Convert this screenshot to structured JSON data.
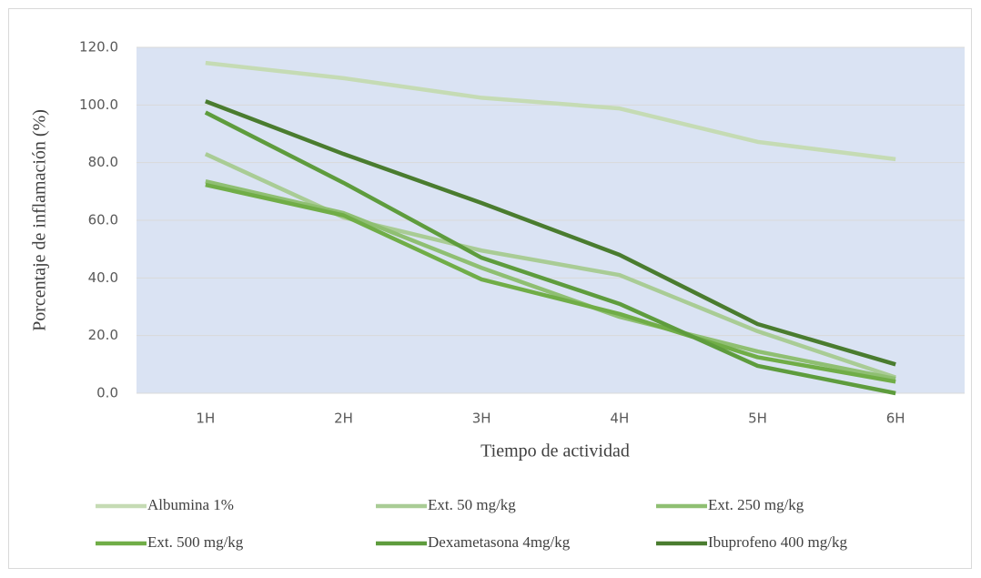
{
  "chart_data": {
    "type": "line",
    "ylabel": "Porcentaje de inflamación (%)",
    "xlabel": "Tiempo de actividad",
    "categories": [
      "1H",
      "2H",
      "3H",
      "4H",
      "5H",
      "6H"
    ],
    "series": [
      {
        "name": "Albumina 1%",
        "color": "#c5dbb4",
        "values": [
          114.6,
          109.3,
          102.5,
          98.8,
          87.2,
          81.2
        ]
      },
      {
        "name": "Ext. 50 mg/kg",
        "color": "#a9cc95",
        "values": [
          83,
          61,
          49.5,
          41,
          21.5,
          5.5
        ]
      },
      {
        "name": "Ext. 250 mg/kg",
        "color": "#8fbf72",
        "values": [
          73.5,
          62.5,
          43.5,
          26.5,
          14.5,
          5
        ]
      },
      {
        "name": "Ext. 500 mg/kg",
        "color": "#70ad47",
        "values": [
          72.3,
          61.7,
          39.5,
          27.5,
          12.5,
          4
        ]
      },
      {
        "name": "Dexametasona 4mg/kg",
        "color": "#5e9c3d",
        "values": [
          97.4,
          73,
          47,
          31,
          9.5,
          0
        ]
      },
      {
        "name": "Ibuprofeno 400 mg/kg",
        "color": "#4a7c2f",
        "values": [
          101.3,
          83,
          66,
          48,
          24,
          10
        ]
      }
    ],
    "ylim": [
      0,
      120
    ],
    "yticks": [
      {
        "value": 0,
        "label": "0.0"
      },
      {
        "value": 20,
        "label": "20.0"
      },
      {
        "value": 40,
        "label": "40.0"
      },
      {
        "value": 60,
        "label": "60.0"
      },
      {
        "value": 80,
        "label": "80.0"
      },
      {
        "value": 100,
        "label": "100.0"
      },
      {
        "value": 120,
        "label": "120.0"
      }
    ],
    "grid": true,
    "legend": "bottom",
    "plot_background": "#dae3f3"
  }
}
